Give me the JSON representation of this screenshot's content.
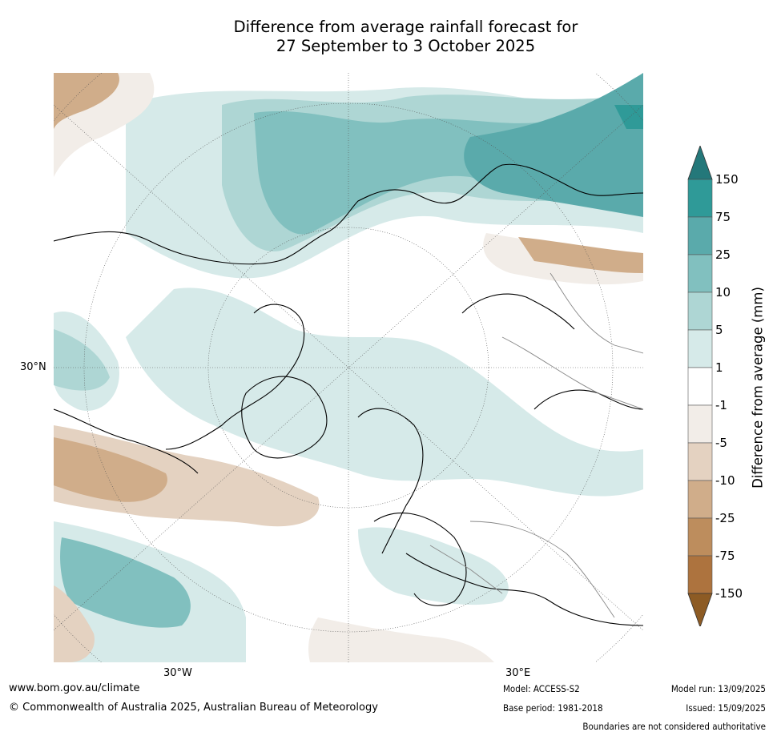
{
  "title": {
    "line1": "Difference from average rainfall forecast for",
    "line2": "27 September to 3 October 2025"
  },
  "map": {
    "lat_label_30n": "30°N",
    "lon_label_30w": "30°W",
    "lon_label_30e": "30°E"
  },
  "legend": {
    "title": "Difference from average (mm)",
    "ticks": [
      "150",
      "75",
      "25",
      "10",
      "5",
      "1",
      "-1",
      "-5",
      "-10",
      "-25",
      "-75",
      "-150"
    ],
    "bins": [
      {
        "range": "> 150",
        "color": "#24787a"
      },
      {
        "range": "75 to 150",
        "color": "#2f9a98"
      },
      {
        "range": "25 to 75",
        "color": "#5aaaab"
      },
      {
        "range": "10 to 25",
        "color": "#81c0bf"
      },
      {
        "range": "5 to 10",
        "color": "#aed6d4"
      },
      {
        "range": "1 to 5",
        "color": "#d6eae9"
      },
      {
        "range": "-1 to 1",
        "color": "#ffffff"
      },
      {
        "range": "-5 to -1",
        "color": "#f2ede8"
      },
      {
        "range": "-10 to -5",
        "color": "#e4d2c1"
      },
      {
        "range": "-25 to -10",
        "color": "#d0ad8a"
      },
      {
        "range": "-75 to -25",
        "color": "#bd8d5d"
      },
      {
        "range": "-150 to -75",
        "color": "#ad733e"
      },
      {
        "range": "< -150",
        "color": "#8d5b24"
      }
    ]
  },
  "footer": {
    "website": "www.bom.gov.au/climate",
    "copyright": "© Commonwealth of Australia 2025, Australian Bureau of Meteorology",
    "model": "Model: ACCESS-S2",
    "base_period": "Base period: 1981-2018",
    "model_run": "Model run: 13/09/2025",
    "issued": "Issued: 15/09/2025",
    "disclaimer": "Boundaries are not considered authoritative"
  }
}
